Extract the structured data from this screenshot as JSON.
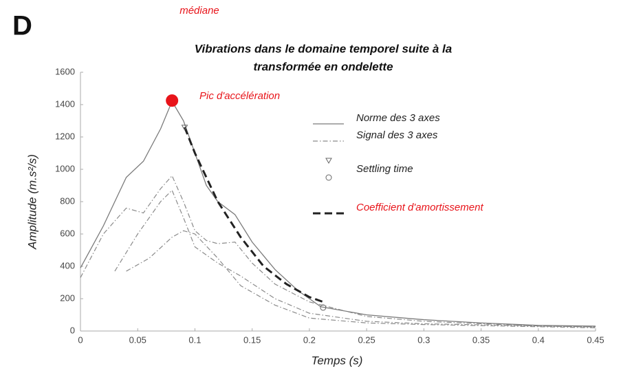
{
  "panel_letter": "D",
  "top_note": "médiane",
  "chart_data": {
    "type": "line",
    "title": [
      "Vibrations dans le domaine temporel suite à la",
      "transformée en ondelette"
    ],
    "x_label": "Temps (s)",
    "y_label": "Amplitude (m.s²/s)",
    "xlim": [
      0,
      0.45
    ],
    "ylim": [
      0,
      1600
    ],
    "xticks": [
      0,
      0.05,
      0.1,
      0.15,
      0.2,
      0.25,
      0.3,
      0.35,
      0.4,
      0.45
    ],
    "yticks": [
      0,
      200,
      400,
      600,
      800,
      1000,
      1200,
      1400,
      1600
    ],
    "series": [
      {
        "name": "Norme des 3 axes",
        "color": "#7a7a7a",
        "style": "solid",
        "curves": [
          {
            "x": [
              0,
              0.02,
              0.04,
              0.055,
              0.07,
              0.08,
              0.09,
              0.1,
              0.11,
              0.12,
              0.135,
              0.15,
              0.17,
              0.19,
              0.21,
              0.25,
              0.3,
              0.35,
              0.4,
              0.45
            ],
            "values": [
              390,
              650,
              950,
              1050,
              1250,
              1420,
              1300,
              1100,
              900,
              800,
              720,
              550,
              380,
              250,
              150,
              100,
              70,
              50,
              35,
              30
            ]
          }
        ]
      },
      {
        "name": "Signal des 3 axes",
        "color": "#8a8a8a",
        "style": "dashdot",
        "curves": [
          {
            "x": [
              0,
              0.02,
              0.04,
              0.055,
              0.07,
              0.08,
              0.09,
              0.1,
              0.11,
              0.12,
              0.135,
              0.15,
              0.17,
              0.2,
              0.25,
              0.3,
              0.35,
              0.4,
              0.45
            ],
            "values": [
              330,
              600,
              760,
              730,
              880,
              960,
              800,
              620,
              560,
              540,
              550,
              420,
              290,
              180,
              90,
              60,
              45,
              30,
              25
            ]
          },
          {
            "x": [
              0.03,
              0.05,
              0.07,
              0.08,
              0.09,
              0.1,
              0.12,
              0.14,
              0.17,
              0.2,
              0.25,
              0.3,
              0.45
            ],
            "values": [
              370,
              600,
              800,
              870,
              700,
              520,
              420,
              340,
              200,
              110,
              60,
              45,
              25
            ]
          },
          {
            "x": [
              0.04,
              0.06,
              0.08,
              0.09,
              0.1,
              0.12,
              0.14,
              0.17,
              0.2,
              0.25,
              0.3,
              0.45
            ],
            "values": [
              370,
              450,
              580,
              620,
              600,
              450,
              280,
              160,
              80,
              50,
              40,
              20
            ]
          }
        ]
      },
      {
        "name": "Coefficient d'amortissement",
        "color": "#222222",
        "style": "dashed",
        "curves": [
          {
            "x": [
              0.091,
              0.1,
              0.12,
              0.14,
              0.16,
              0.18,
              0.2,
              0.212
            ],
            "values": [
              1260,
              1100,
              800,
              580,
              400,
              290,
              210,
              180
            ]
          }
        ]
      }
    ],
    "settling_time": {
      "name": "Settling time",
      "x": 0.091,
      "value": 1260
    },
    "end_point": {
      "x": 0.212,
      "value": 145
    },
    "peak": {
      "label": "Pic d'accélération",
      "x": 0.08,
      "value": 1425,
      "color": "#e8141a"
    }
  }
}
